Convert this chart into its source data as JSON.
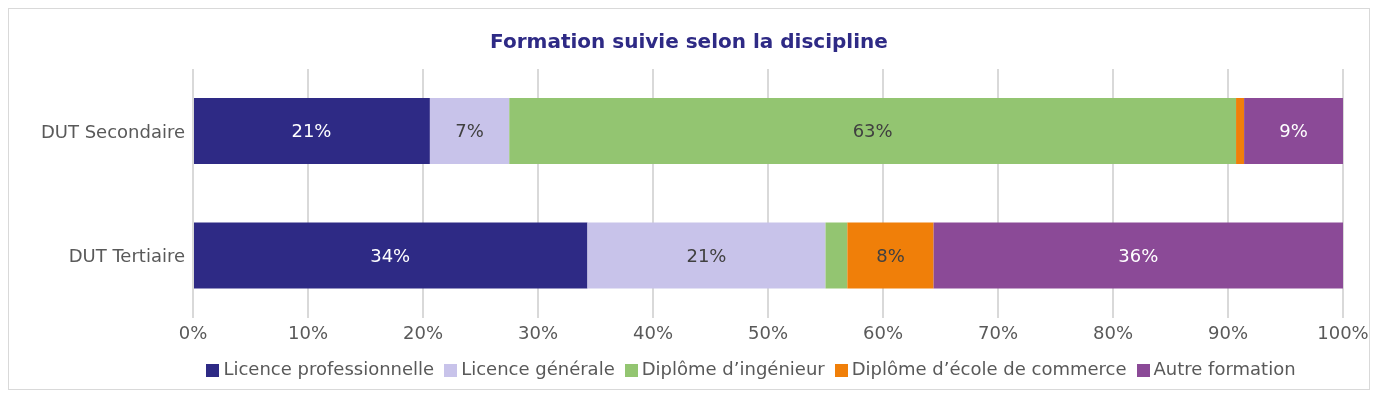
{
  "chart_data": {
    "type": "bar",
    "orientation": "horizontal",
    "stacked": true,
    "title": "Formation suivie selon la discipline",
    "categories": [
      "DUT Secondaire",
      "DUT Tertiaire"
    ],
    "series": [
      {
        "name": "Licence professionnelle",
        "color": "#2e2a85",
        "values": [
          20.6,
          34.3
        ],
        "value_labels": [
          "21%",
          "34%"
        ]
      },
      {
        "name": "Licence générale",
        "color": "#c8c3ea",
        "values": [
          6.9,
          20.7
        ],
        "value_labels": [
          "7%",
          "21%"
        ]
      },
      {
        "name": "Diplôme d’ingénieur",
        "color": "#93c571",
        "values": [
          63.2,
          1.9
        ],
        "value_labels": [
          "63%",
          null
        ]
      },
      {
        "name": "Diplôme d’école de commerce",
        "color": "#f07f09",
        "values": [
          0.7,
          7.5
        ],
        "value_labels": [
          null,
          "8%"
        ]
      },
      {
        "name": "Autre formation",
        "color": "#8b4a97",
        "values": [
          8.6,
          35.6
        ],
        "value_labels": [
          "9%",
          "36%"
        ]
      }
    ],
    "xlim": [
      0,
      100
    ],
    "xticks": [
      {
        "value": 0,
        "label": "0%"
      },
      {
        "value": 10,
        "label": "10%"
      },
      {
        "value": 20,
        "label": "20%"
      },
      {
        "value": 30,
        "label": "30%"
      },
      {
        "value": 40,
        "label": "40%"
      },
      {
        "value": 50,
        "label": "50%"
      },
      {
        "value": 60,
        "label": "60%"
      },
      {
        "value": 70,
        "label": "70%"
      },
      {
        "value": 80,
        "label": "80%"
      },
      {
        "value": 90,
        "label": "90%"
      },
      {
        "value": 100,
        "label": "100%"
      }
    ],
    "grid": "x",
    "legend": "bottom"
  }
}
